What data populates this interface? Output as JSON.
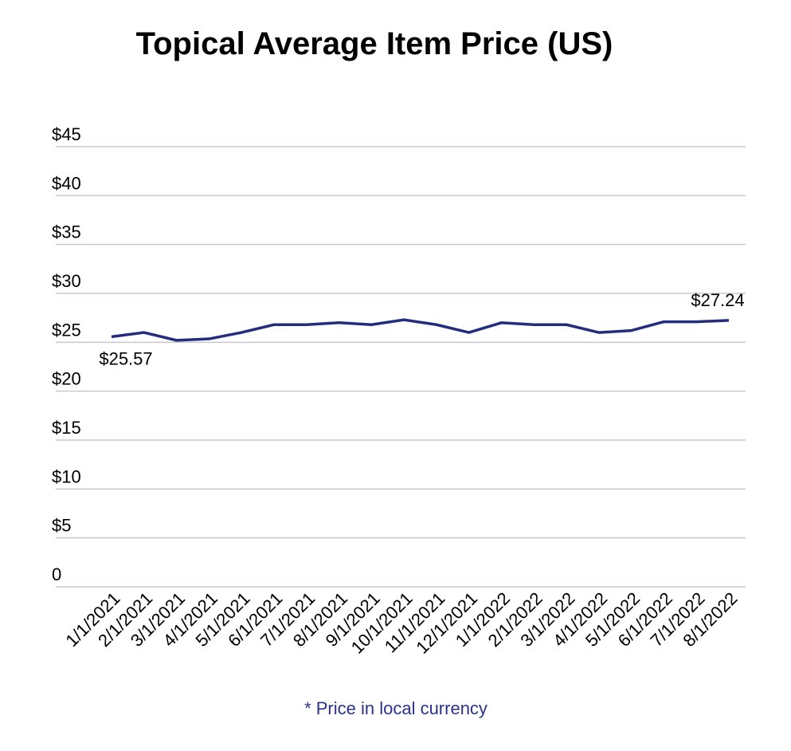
{
  "chart_data": {
    "type": "line",
    "title": "Topical Average Item Price (US)",
    "categories": [
      "1/1/2021",
      "2/1/2021",
      "3/1/2021",
      "4/1/2021",
      "5/1/2021",
      "6/1/2021",
      "7/1/2021",
      "8/1/2021",
      "9/1/2021",
      "10/1/2021",
      "11/1/2021",
      "12/1/2021",
      "1/1/2022",
      "2/1/2022",
      "3/1/2022",
      "4/1/2022",
      "5/1/2022",
      "6/1/2022",
      "7/1/2022",
      "8/1/2022"
    ],
    "values": [
      25.57,
      26.0,
      25.2,
      25.35,
      26.0,
      26.8,
      26.8,
      27.0,
      26.8,
      27.3,
      26.8,
      26.0,
      27.0,
      26.8,
      26.8,
      26.0,
      26.2,
      27.1,
      27.1,
      27.24
    ],
    "value_labels": [
      "$25.57",
      null,
      null,
      null,
      null,
      null,
      null,
      null,
      null,
      null,
      null,
      null,
      null,
      null,
      null,
      null,
      null,
      null,
      null,
      "$27.24"
    ],
    "color": "#222d7e",
    "ylim": [
      0,
      45
    ],
    "yticks": [
      0,
      {
        "value": 5,
        "label": "$5"
      },
      {
        "value": 10,
        "label": "$10"
      },
      {
        "value": 15,
        "label": "$15"
      },
      {
        "value": 20,
        "label": "$20"
      },
      {
        "value": 25,
        "label": "$25"
      },
      {
        "value": 30,
        "label": "$30"
      },
      {
        "value": 35,
        "label": "$35"
      },
      {
        "value": 40,
        "label": "$40"
      },
      {
        "value": 45,
        "label": "$45"
      }
    ],
    "grid": true,
    "note": "* Price in local currency"
  }
}
